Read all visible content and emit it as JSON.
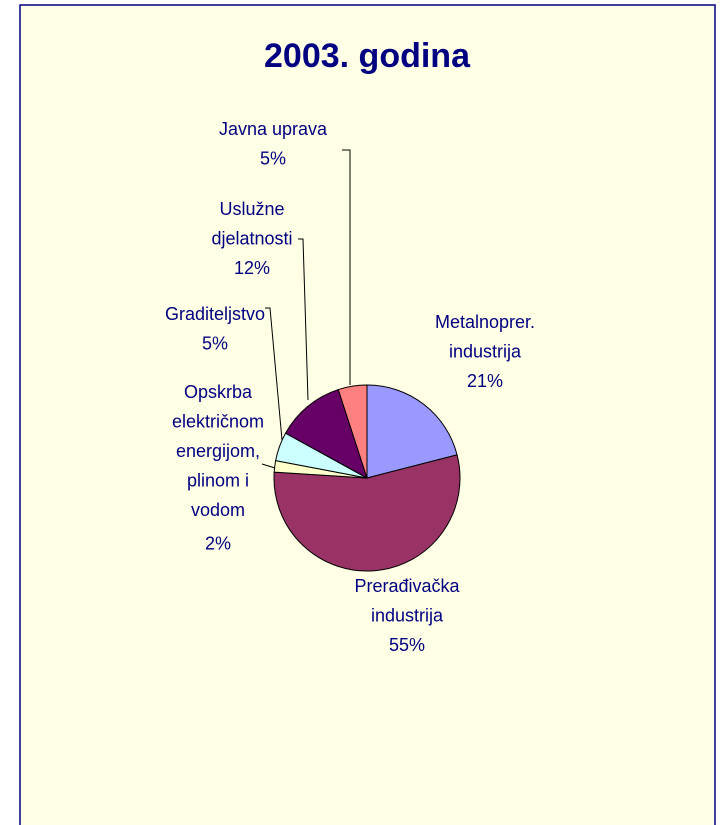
{
  "chart_data": {
    "type": "pie",
    "title": "2003. godina",
    "categories": [
      "Metalnoprer.\nindustrija",
      "Prerađivačka\nindustrija",
      "Opskrba\nelektričnom\nenergijom,\nplinom i\nvodom",
      "Graditeljstvo",
      "Uslužne\ndjelatnosti",
      "Javna uprava"
    ],
    "values": [
      21,
      55,
      2,
      5,
      12,
      5
    ],
    "value_labels": [
      "21%",
      "55%",
      "2%",
      "5%",
      "12%",
      "5%"
    ],
    "colors": [
      "#9999ff",
      "#993366",
      "#ffffcc",
      "#ccffff",
      "#660066",
      "#ff8080"
    ]
  }
}
